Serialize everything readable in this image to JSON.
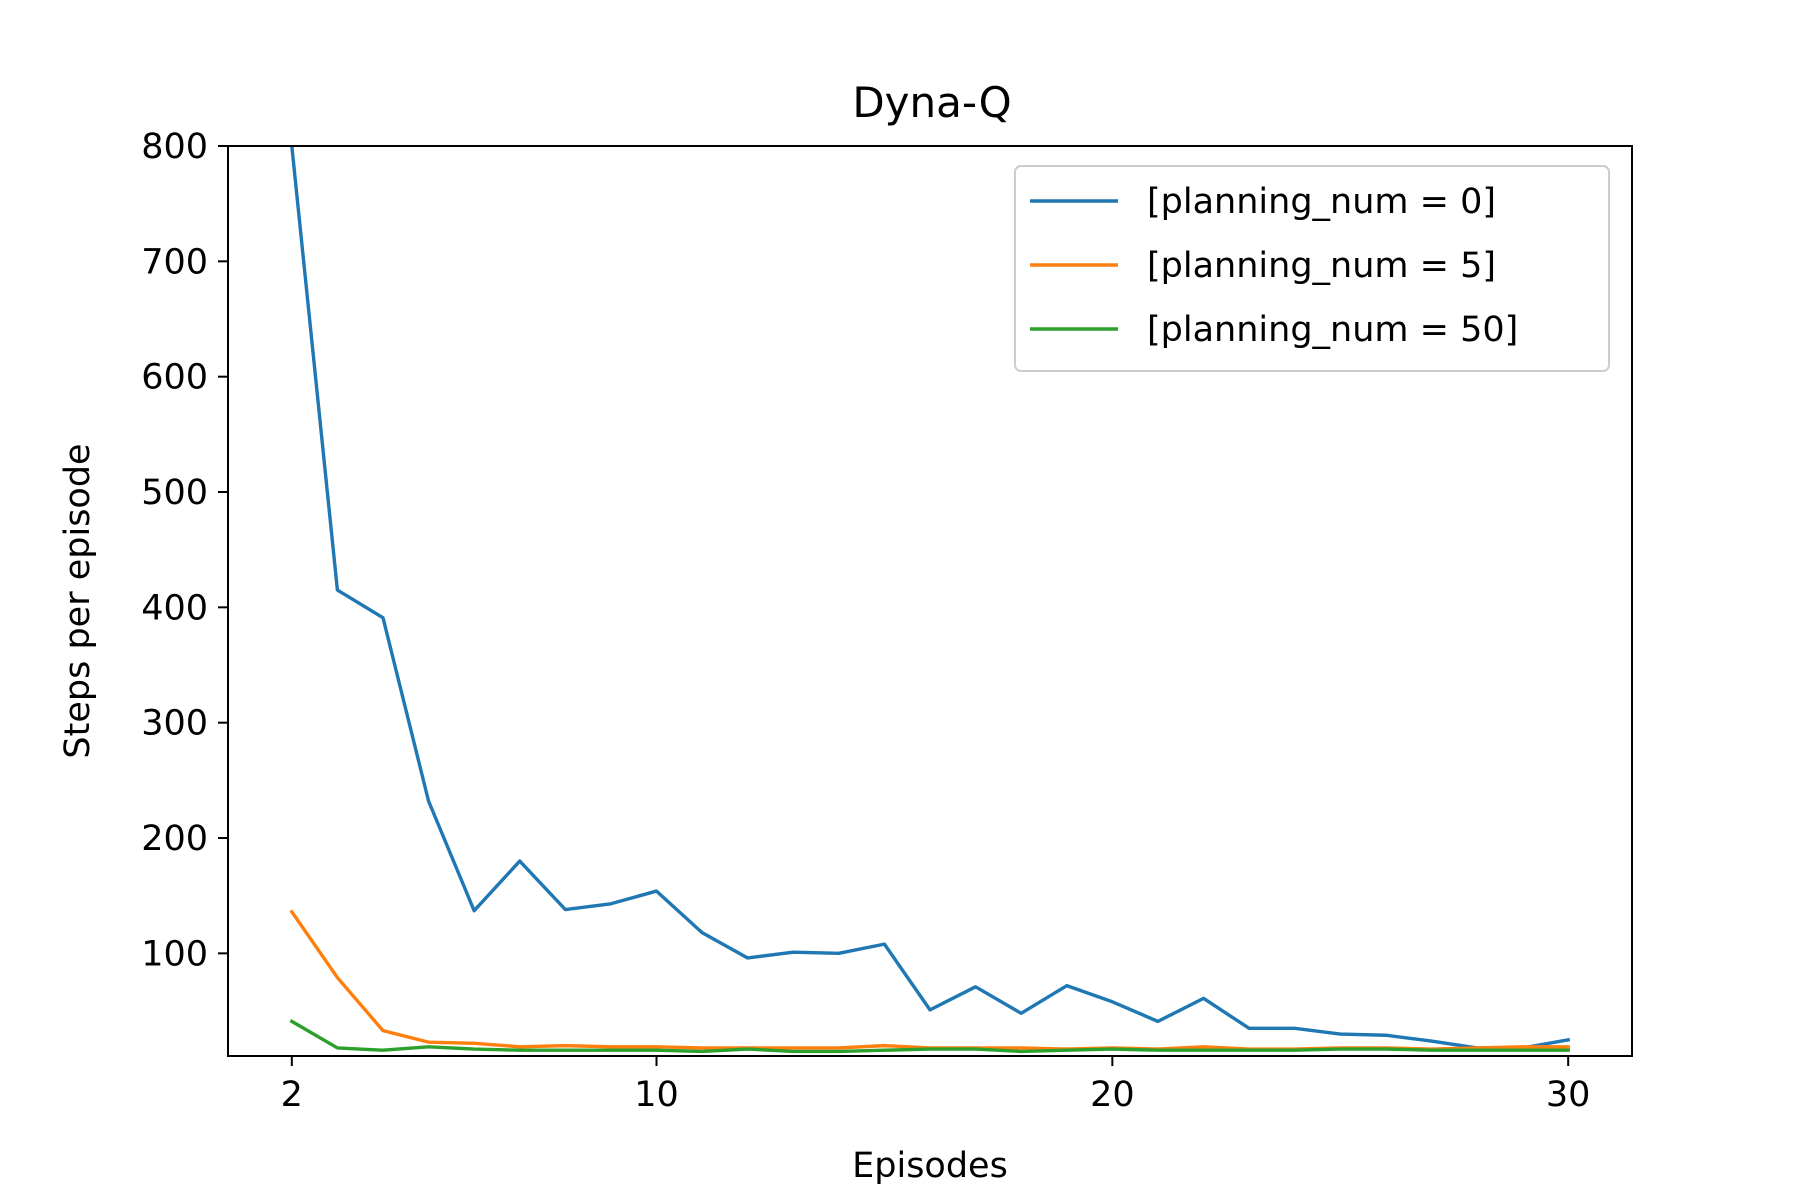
{
  "chart_data": {
    "type": "line",
    "title": "Dyna-Q",
    "xlabel": "Episodes",
    "ylabel": "Steps per episode",
    "xlim": [
      0.6,
      31.4
    ],
    "ylim": [
      11,
      800
    ],
    "xticks": [
      2,
      10,
      20,
      30
    ],
    "yticks": [
      100,
      200,
      300,
      400,
      500,
      600,
      700,
      800
    ],
    "grid": false,
    "legend_position": "top-right",
    "x": [
      2,
      3,
      4,
      5,
      6,
      7,
      8,
      9,
      10,
      11,
      12,
      13,
      14,
      15,
      16,
      17,
      18,
      19,
      20,
      21,
      22,
      23,
      24,
      25,
      26,
      27,
      28,
      29,
      30
    ],
    "series": [
      {
        "name": "[planning_num = 0]",
        "color": "#1f77b4",
        "values": [
          800,
          415,
          391,
          232,
          137,
          180,
          138,
          143,
          154,
          118,
          96,
          101,
          100,
          108,
          51,
          71,
          48,
          72,
          58,
          41,
          61,
          35,
          35,
          30,
          29,
          24,
          18,
          18,
          25
        ]
      },
      {
        "name": "[planning_num = 5]",
        "color": "#ff7f0e",
        "values": [
          136,
          79,
          33,
          23,
          22,
          19,
          20,
          19,
          19,
          18,
          18,
          18,
          18,
          20,
          18,
          18,
          18,
          17,
          18,
          17,
          19,
          17,
          17,
          18,
          18,
          17,
          18,
          19,
          19
        ]
      },
      {
        "name": "[planning_num = 50]",
        "color": "#2ca02c",
        "values": [
          41,
          18,
          16,
          19,
          17,
          16,
          16,
          16,
          16,
          15,
          17,
          15,
          15,
          16,
          17,
          17,
          15,
          16,
          17,
          16,
          16,
          16,
          16,
          17,
          17,
          16,
          16,
          16,
          16
        ]
      }
    ]
  }
}
